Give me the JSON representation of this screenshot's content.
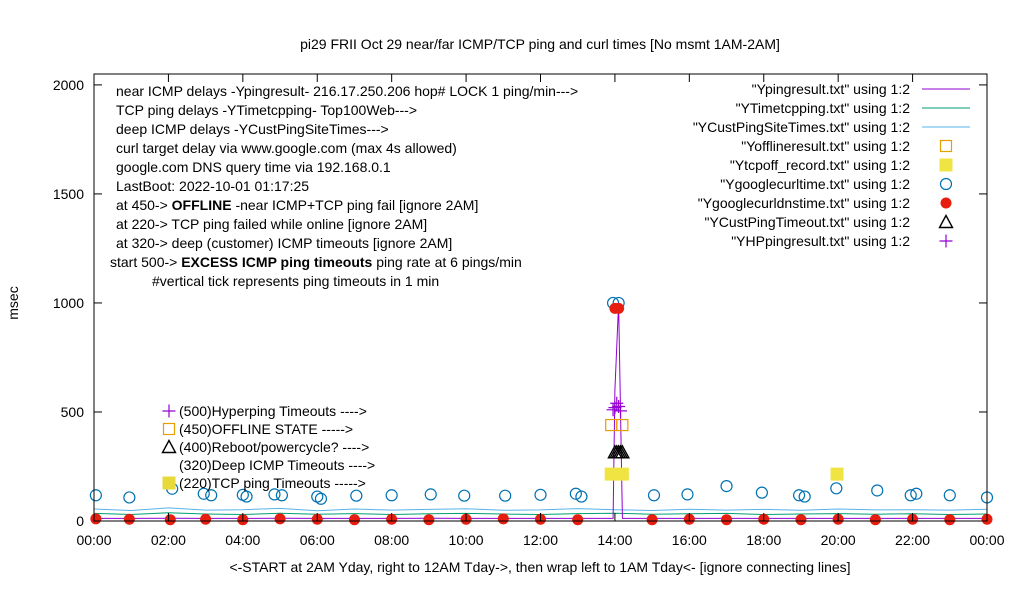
{
  "chart_data": {
    "type": "line",
    "title": "pi29 FRII Oct 29  near/far ICMP/TCP ping and curl times [No msmt 1AM-2AM]",
    "xlabel": "<-START at 2AM Yday, right to 12AM Tday->, then wrap left to 1AM Tday<- [ignore connecting lines]",
    "ylabel": "msec",
    "xlim": [
      0,
      24
    ],
    "ylim": [
      0,
      2050
    ],
    "x_ticks": [
      "00:00",
      "02:00",
      "04:00",
      "06:00",
      "08:00",
      "10:00",
      "12:00",
      "14:00",
      "16:00",
      "18:00",
      "20:00",
      "22:00",
      "00:00"
    ],
    "y_ticks": [
      0,
      500,
      1000,
      1500,
      2000
    ],
    "grid": false,
    "legend_position": "top-right",
    "annotations": [
      "near ICMP delays -Ypingresult- 216.17.250.206 hop# LOCK 1 ping/min--->",
      "TCP ping delays -YTimetcpping- Top100Web--->",
      "deep ICMP delays -YCustPingSiteTimes--->",
      "curl target delay via www.google.com (max 4s allowed)",
      "google.com DNS query time via 192.168.0.1",
      "LastBoot: 2022-10-01 01:17:25"
    ],
    "status_lines": [
      {
        "prefix": "at 450->",
        "bold": "OFFLINE",
        "rest": " -near ICMP+TCP ping fail [ignore 2AM]"
      },
      {
        "prefix": "at 220-> TCP ping failed while online [ignore 2AM]",
        "bold": "",
        "rest": ""
      },
      {
        "prefix": "at 320-> deep (customer) ICMP timeouts [ignore 2AM]",
        "bold": "",
        "rest": ""
      },
      {
        "prefix": "start 500->",
        "bold": "EXCESS ICMP ping timeouts",
        "rest": " ping rate at 6 pings/min"
      }
    ],
    "vertical_tick_note": "#vertical tick represents ping timeouts in 1 min",
    "inline_key": [
      {
        "label": "(500)Hyperping Timeouts ---->",
        "marker": "plus",
        "color": "#9400d3"
      },
      {
        "label": "(450)OFFLINE STATE ----->",
        "marker": "open-square",
        "color": "#e69f00"
      },
      {
        "label": "(400)Reboot/powercycle? ---->",
        "marker": "open-triangle",
        "color": "#000000"
      },
      {
        "label": "(320)Deep ICMP Timeouts ---->",
        "marker": "none",
        "color": "#000000"
      },
      {
        "label": "(220)TCP ping Timeouts ----->",
        "marker": "filled-square",
        "color": "#e7d93a"
      }
    ],
    "series": [
      {
        "name": "\"Ypingresult.txt\" using 1:2",
        "style": "line",
        "color": "#9400d3",
        "x": [
          0,
          1,
          2,
          3,
          4,
          5,
          6,
          7,
          8,
          9,
          10,
          11,
          12,
          13,
          13.95,
          14.0,
          14.1,
          14.2,
          15,
          16,
          17,
          18,
          19,
          20,
          21,
          22,
          23,
          24
        ],
        "y": [
          12,
          12,
          13,
          12,
          12,
          13,
          12,
          12,
          12,
          13,
          12,
          12,
          12,
          12,
          12,
          600,
          1000,
          12,
          12,
          12,
          12,
          12,
          12,
          12,
          12,
          12,
          12,
          12
        ]
      },
      {
        "name": "\"YTimetcpping.txt\" using 1:2",
        "style": "line",
        "color": "#009e73",
        "x": [
          0,
          1,
          2,
          3,
          4,
          5,
          6,
          7,
          8,
          9,
          10,
          11,
          12,
          13,
          14,
          15,
          16,
          17,
          18,
          19,
          20,
          21,
          22,
          23,
          24
        ],
        "y": [
          35,
          30,
          38,
          32,
          30,
          36,
          31,
          34,
          30,
          33,
          35,
          32,
          30,
          34,
          36,
          31,
          33,
          35,
          30,
          32,
          34,
          31,
          33,
          30,
          32
        ]
      },
      {
        "name": "\"YCustPingSiteTimes.txt\" using 1:2",
        "style": "line",
        "color": "#56b4e9",
        "x": [
          0,
          1,
          2,
          3,
          4,
          5,
          6,
          7,
          8,
          9,
          10,
          11,
          12,
          13,
          14,
          15,
          16,
          17,
          18,
          19,
          20,
          21,
          22,
          23,
          24
        ],
        "y": [
          55,
          48,
          60,
          50,
          52,
          58,
          47,
          55,
          50,
          53,
          56,
          49,
          51,
          57,
          52,
          48,
          54,
          50,
          53,
          49,
          55,
          51,
          52,
          50,
          54
        ]
      },
      {
        "name": "\"Yofflineresult.txt\" using 1:2",
        "style": "open-square",
        "color": "#e69f00",
        "x": [
          13.9,
          14.2
        ],
        "y": [
          440,
          440
        ]
      },
      {
        "name": "\"Ytcpoff_record.txt\" using 1:2",
        "style": "filled-square",
        "color": "#f0e442",
        "x": [
          13.9,
          14.2,
          19.97
        ],
        "y": [
          215,
          215,
          215
        ]
      },
      {
        "name": "\"Ygooglecurltime.txt\" using 1:2",
        "style": "open-circle",
        "color": "#0072b2",
        "x": [
          0.05,
          0.95,
          2.1,
          2.95,
          3.15,
          4.0,
          4.1,
          4.85,
          5.05,
          6.0,
          6.1,
          7.05,
          8.0,
          9.05,
          9.95,
          11.05,
          12.0,
          12.95,
          13.1,
          13.95,
          14.1,
          15.05,
          15.95,
          17.0,
          17.95,
          18.95,
          19.1,
          19.95,
          21.05,
          21.95,
          22.1,
          23.0,
          24.0
        ],
        "y": [
          118,
          108,
          148,
          125,
          118,
          120,
          112,
          122,
          118,
          112,
          102,
          116,
          118,
          122,
          116,
          116,
          120,
          125,
          112,
          1000,
          1000,
          118,
          122,
          160,
          130,
          118,
          112,
          150,
          140,
          118,
          125,
          118,
          108
        ]
      },
      {
        "name": "\"Ygooglecurldnstime.txt\" using 1:2",
        "style": "filled-circle",
        "color": "#e51e10",
        "x": [
          0.05,
          0.95,
          2.05,
          3.0,
          4.0,
          5.0,
          6.0,
          7.0,
          8.0,
          9.0,
          10.0,
          11.0,
          12.0,
          13.0,
          14.0,
          14.1,
          15.0,
          16.0,
          17.0,
          18.0,
          19.0,
          20.0,
          21.0,
          22.0,
          23.0,
          24.0
        ],
        "y": [
          10,
          8,
          6,
          8,
          6,
          10,
          8,
          6,
          8,
          6,
          8,
          10,
          8,
          6,
          975,
          975,
          6,
          8,
          6,
          8,
          6,
          8,
          6,
          8,
          6,
          8
        ]
      },
      {
        "name": "\"YCustPingTimeout.txt\" using 1:2",
        "style": "open-triangle",
        "color": "#000000",
        "x": [
          14.0,
          14.05,
          14.1,
          14.15,
          14.2
        ],
        "y": [
          315,
          315,
          315,
          315,
          315
        ]
      },
      {
        "name": "\"YHPpingresult.txt\" using 1:2",
        "style": "plus",
        "color": "#9400d3",
        "x": [
          13.95,
          14.0,
          14.05,
          14.1,
          14.15
        ],
        "y": [
          510,
          520,
          540,
          525,
          505
        ]
      }
    ]
  }
}
